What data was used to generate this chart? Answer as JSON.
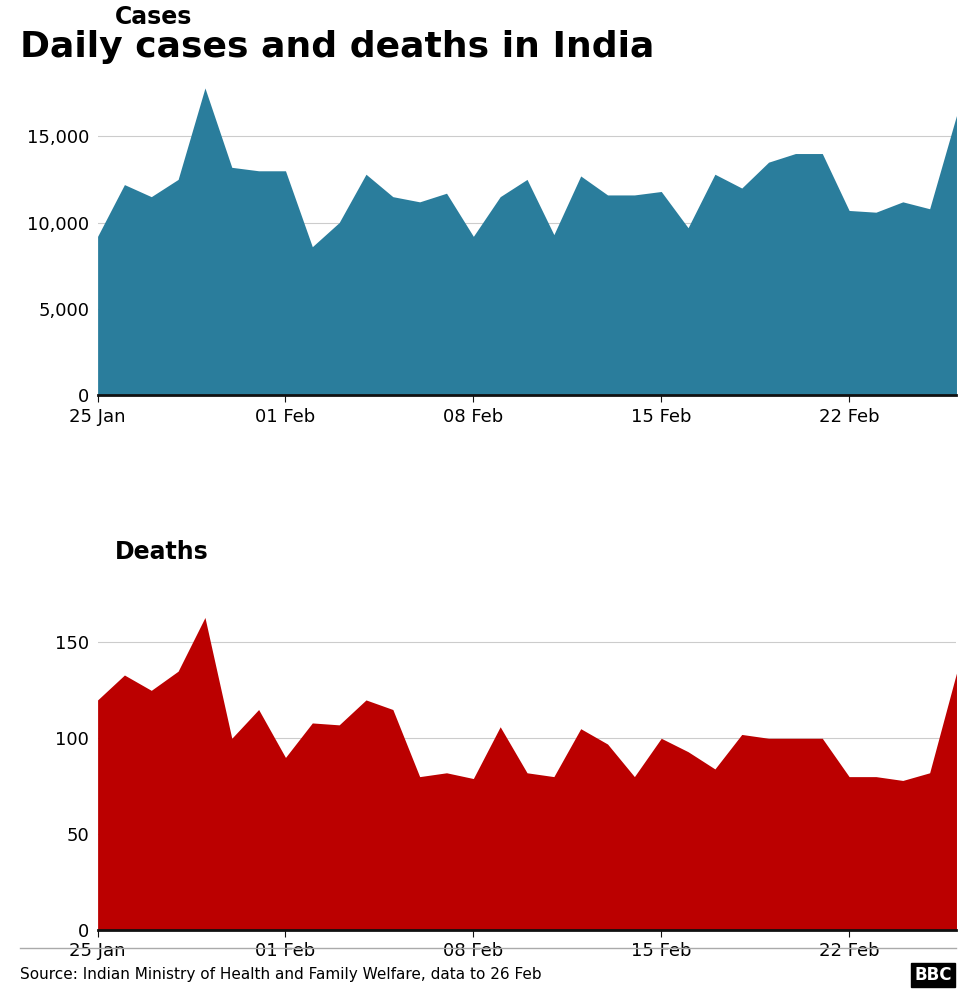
{
  "title": "Daily cases and deaths in India",
  "title_fontsize": 26,
  "cases_label": "Cases",
  "deaths_label": "Deaths",
  "source_text": "Source: Indian Ministry of Health and Family Welfare, data to 26 Feb",
  "cases_color": "#2a7d9c",
  "deaths_color": "#bb0000",
  "background_color": "#ffffff",
  "dates_numeric": [
    0,
    1,
    2,
    3,
    4,
    5,
    6,
    7,
    8,
    9,
    10,
    11,
    12,
    13,
    14,
    15,
    16,
    17,
    18,
    19,
    20,
    21,
    22,
    23,
    24,
    25,
    26,
    27,
    28,
    29,
    30,
    31,
    32
  ],
  "xtick_positions": [
    0,
    7,
    14,
    21,
    28
  ],
  "xtick_labels": [
    "25 Jan",
    "01 Feb",
    "08 Feb",
    "15 Feb",
    "22 Feb"
  ],
  "cases_values": [
    9200,
    12200,
    11500,
    12500,
    17800,
    13200,
    13000,
    13000,
    8600,
    10000,
    12800,
    11500,
    11200,
    11700,
    9200,
    11500,
    12500,
    9300,
    12700,
    11600,
    11600,
    11800,
    9700,
    12800,
    12000,
    13500,
    14000,
    14000,
    10700,
    10600,
    11200,
    10800,
    16200
  ],
  "deaths_values": [
    120,
    133,
    125,
    135,
    163,
    100,
    115,
    90,
    108,
    107,
    120,
    115,
    80,
    82,
    79,
    106,
    82,
    80,
    105,
    97,
    80,
    100,
    93,
    84,
    102,
    100,
    100,
    100,
    80,
    80,
    78,
    82,
    134
  ],
  "cases_ylim": [
    0,
    20000
  ],
  "cases_yticks": [
    0,
    5000,
    10000,
    15000
  ],
  "deaths_ylim": [
    0,
    180
  ],
  "deaths_yticks": [
    0,
    50,
    100,
    150
  ],
  "label_fontsize": 17,
  "tick_fontsize": 13,
  "source_fontsize": 11,
  "grid_color": "#cccccc",
  "spine_color": "#111111",
  "separator_color": "#aaaaaa"
}
